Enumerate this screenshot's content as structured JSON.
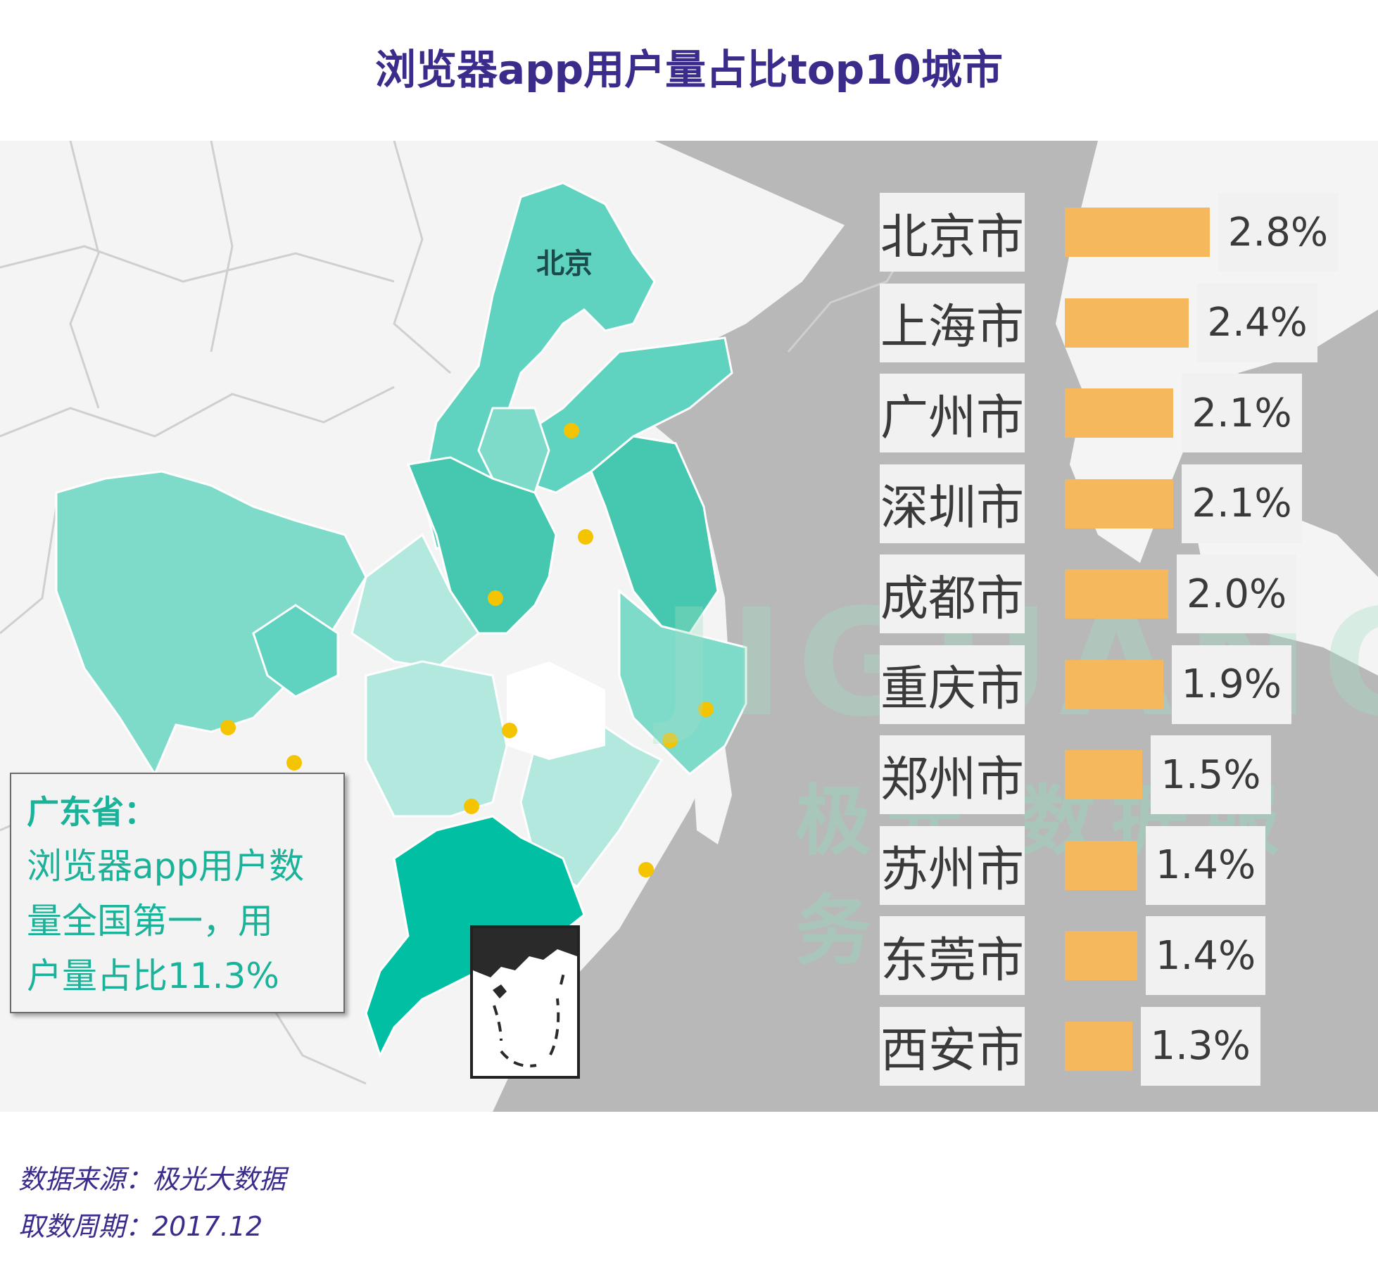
{
  "title": "浏览器app用户量占比top10城市",
  "map": {
    "beijing_label": "北京",
    "watermark": "极光 数据服务",
    "watermark_brand": "JIGUANG"
  },
  "callout": {
    "heading": "广东省：",
    "body_lines": [
      "浏览器app用户数",
      "量全国第一，用",
      "户量占比11.3%"
    ]
  },
  "colors": {
    "title": "#3b2c8c",
    "bar": "#f5b85c",
    "highlight_province": "#00bfa3",
    "province": "#5fd3c0",
    "callout_text": "#1ab39a"
  },
  "chart_data": {
    "type": "bar",
    "orientation": "horizontal",
    "categories": [
      "北京市",
      "上海市",
      "广州市",
      "深圳市",
      "成都市",
      "重庆市",
      "郑州市",
      "苏州市",
      "东莞市",
      "西安市"
    ],
    "values": [
      2.8,
      2.4,
      2.1,
      2.1,
      2.0,
      1.9,
      1.5,
      1.4,
      1.4,
      1.3
    ],
    "value_labels": [
      "2.8%",
      "2.4%",
      "2.1%",
      "2.1%",
      "2.0%",
      "1.9%",
      "1.5%",
      "1.4%",
      "1.4%",
      "1.3%"
    ]
  },
  "footer": {
    "source": "数据来源：极光大数据",
    "period": "取数周期：2017.12"
  }
}
